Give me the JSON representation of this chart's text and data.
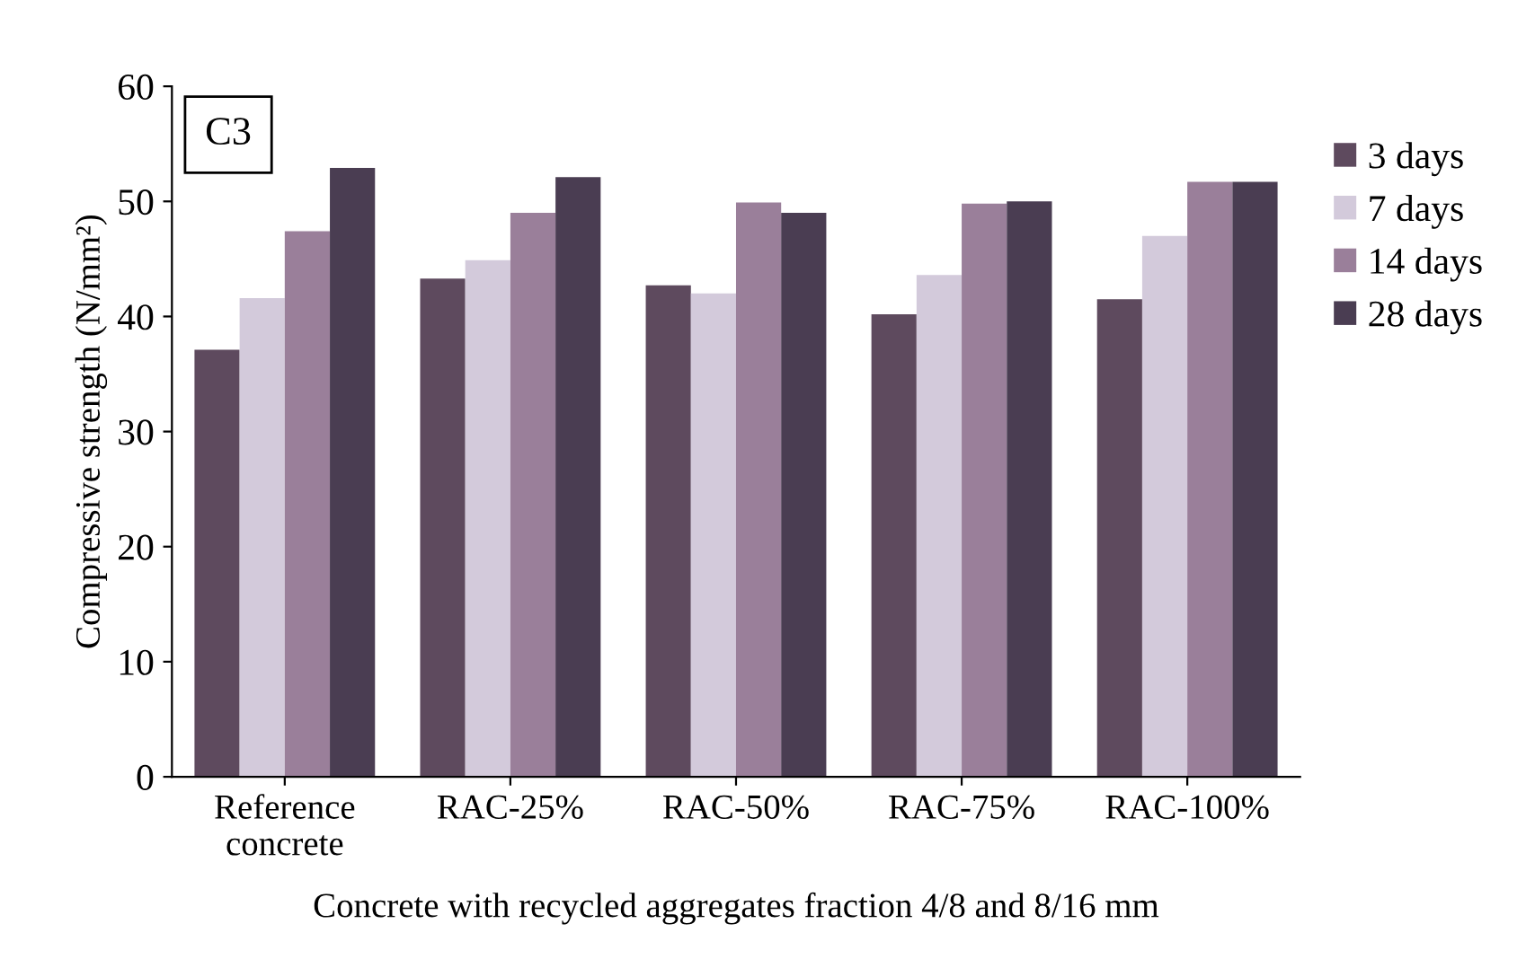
{
  "chart_data": {
    "type": "bar",
    "xlabel": "Concrete with recycled aggregates fraction 4/8 and 8/16 mm",
    "ylabel": "Compressive strength (N/mm²)",
    "categories": [
      "Reference\nconcrete",
      "RAC-25%",
      "RAC-50%",
      "RAC-75%",
      "RAC-100%"
    ],
    "series": [
      {
        "name": "3 days",
        "color": "#5e4a5e",
        "values": [
          37.1,
          43.3,
          42.7,
          40.2,
          41.5
        ]
      },
      {
        "name": "7 days",
        "color": "#d3cadb",
        "values": [
          41.6,
          44.9,
          42.0,
          43.6,
          47.0
        ]
      },
      {
        "name": "14 days",
        "color": "#9a7f9a",
        "values": [
          47.4,
          49.0,
          49.9,
          49.8,
          51.7
        ]
      },
      {
        "name": "28 days",
        "color": "#4a3d52",
        "values": [
          52.9,
          52.1,
          49.0,
          50.0,
          51.7
        ]
      }
    ],
    "ylim": [
      0,
      60
    ],
    "yticks": [
      0,
      10,
      20,
      30,
      40,
      50,
      60
    ],
    "grid": false,
    "legend": "right",
    "annotations": [
      "C3"
    ]
  }
}
